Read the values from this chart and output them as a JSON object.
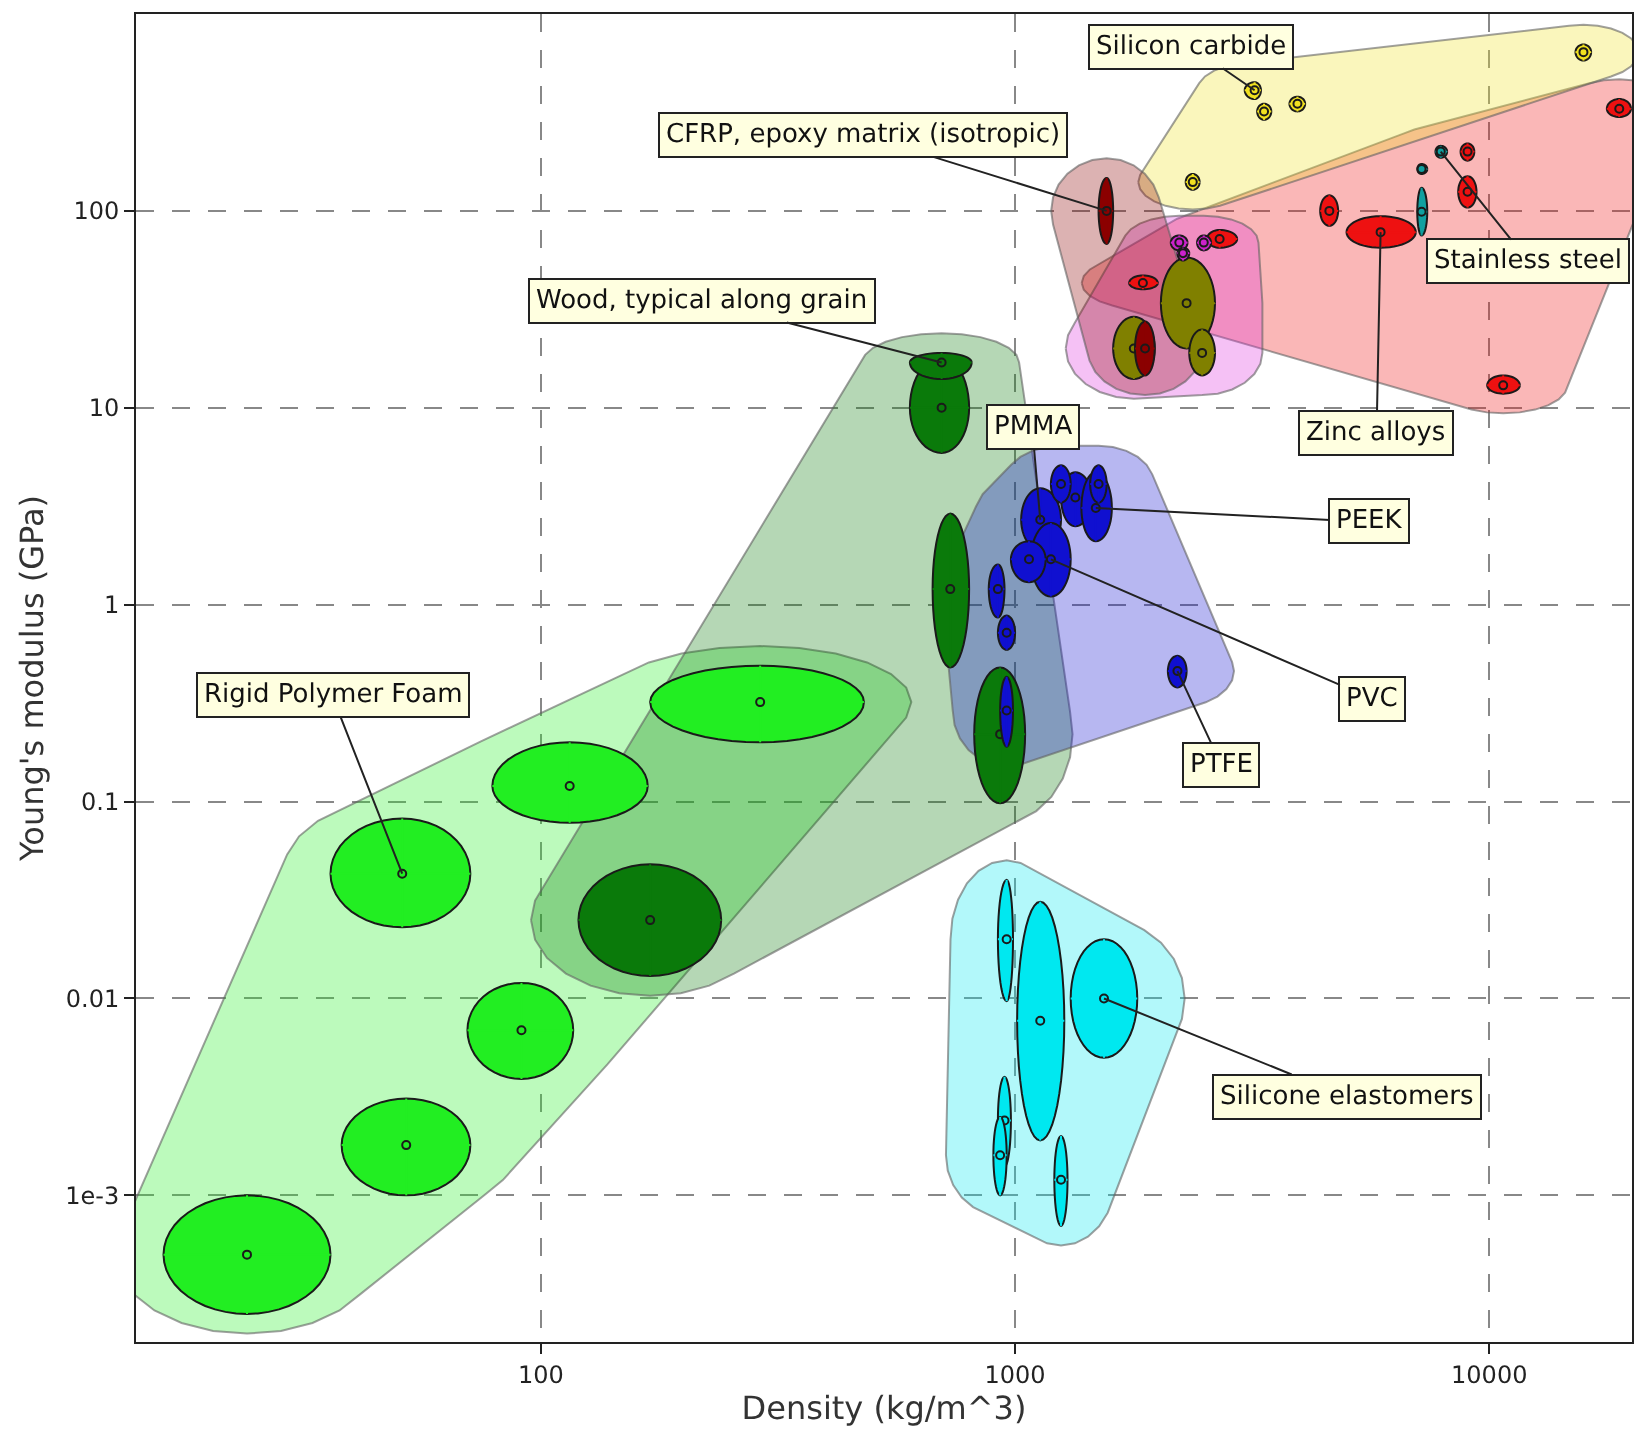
{
  "chart_data": {
    "type": "scatter",
    "log": "xy",
    "xlabel": "Density (kg/m^3)",
    "ylabel": "Young's modulus (GPa)",
    "xlim": [
      14,
      20000
    ],
    "ylim": [
      0.00018,
      1000
    ],
    "xticks": [
      100,
      1000,
      10000
    ],
    "yticks": [
      {
        "value": 0.001,
        "label": "1e-3"
      },
      {
        "value": 0.01,
        "label": "0.01"
      },
      {
        "value": 0.1,
        "label": "0.1"
      },
      {
        "value": 1,
        "label": "1"
      },
      {
        "value": 10,
        "label": "10"
      },
      {
        "value": 100,
        "label": "100"
      }
    ],
    "grid": true,
    "series": [
      {
        "color": "#22ee22",
        "x": [
          24,
          52,
          91,
          51,
          115,
          290
        ],
        "values": [
          0.0005,
          0.0018,
          0.0069,
          0.043,
          0.12,
          0.32
        ],
        "xerrors": [
          [
            16,
            36
          ],
          [
            38,
            71
          ],
          [
            70,
            117
          ],
          [
            36,
            71
          ],
          [
            79,
            168
          ],
          [
            170,
            480
          ]
        ],
        "errors": [
          [
            0.00025,
            0.001
          ],
          [
            0.001,
            0.0031
          ],
          [
            0.0039,
            0.012
          ],
          [
            0.023,
            0.082
          ],
          [
            0.078,
            0.2
          ],
          [
            0.2,
            0.49
          ]
        ]
      },
      {
        "color": "#0a7a0a",
        "x": [
          170,
          700,
          700,
          730,
          930
        ],
        "values": [
          0.025,
          10,
          17,
          1.2,
          0.22
        ],
        "xerrors": [
          [
            120,
            240
          ],
          [
            600,
            800
          ],
          [
            600,
            810
          ],
          [
            670,
            800
          ],
          [
            820,
            1050
          ]
        ],
        "errors": [
          [
            0.013,
            0.048
          ],
          [
            5.9,
            18
          ],
          [
            14,
            19
          ],
          [
            0.48,
            2.9
          ],
          [
            0.098,
            0.48
          ]
        ]
      },
      {
        "color": "#1010d0",
        "x": [
          920,
          960,
          960,
          2200,
          1130,
          1190,
          1070,
          1340,
          1480,
          1250,
          1500
        ],
        "values": [
          1.2,
          0.72,
          0.29,
          0.46,
          2.7,
          1.7,
          1.7,
          3.5,
          3.1,
          4.1,
          4.1
        ],
        "xerrors": [
          [
            880,
            950
          ],
          [
            920,
            1000
          ],
          [
            930,
            990
          ],
          [
            2100,
            2300
          ],
          [
            1030,
            1250
          ],
          [
            1080,
            1310
          ],
          [
            980,
            1160
          ],
          [
            1250,
            1450
          ],
          [
            1380,
            1600
          ],
          [
            1190,
            1310
          ],
          [
            1440,
            1560
          ]
        ],
        "errors": [
          [
            0.86,
            1.6
          ],
          [
            0.59,
            0.88
          ],
          [
            0.19,
            0.43
          ],
          [
            0.38,
            0.55
          ],
          [
            1.9,
            3.9
          ],
          [
            1.1,
            2.6
          ],
          [
            1.3,
            2.1
          ],
          [
            2.5,
            4.7
          ],
          [
            2.1,
            4.7
          ],
          [
            3.3,
            5.1
          ],
          [
            3.3,
            5.1
          ]
        ]
      },
      {
        "color": "#00e8f0",
        "x": [
          960,
          1130,
          1540,
          950,
          930,
          1250
        ],
        "values": [
          0.02,
          0.0077,
          0.01,
          0.0024,
          0.0016,
          0.0012
        ],
        "xerrors": [
          [
            920,
            990
          ],
          [
            1010,
            1270
          ],
          [
            1310,
            1810
          ],
          [
            920,
            980
          ],
          [
            900,
            960
          ],
          [
            1210,
            1290
          ]
        ],
        "errors": [
          [
            0.0097,
            0.04
          ],
          [
            0.0019,
            0.031
          ],
          [
            0.005,
            0.02
          ],
          [
            0.0014,
            0.004
          ],
          [
            0.001,
            0.0025
          ],
          [
            0.0007,
            0.002
          ]
        ]
      },
      {
        "color": "#ee1111",
        "colors": [
          "#ee1111",
          "#ee1111",
          "#ee1111",
          "#ee1111",
          "#ee1111",
          "#ee1111",
          "#ee1111",
          "#ee1111",
          "#10a0a0",
          "#10a0a0",
          "#10a0a0"
        ],
        "x": [
          4600,
          5900,
          9000,
          9000,
          18800,
          10700,
          2700,
          1860,
          7900,
          7200,
          7200
        ],
        "values": [
          100,
          78,
          200,
          125,
          330,
          13,
          72,
          43,
          200,
          163,
          99
        ],
        "xerrors": [
          [
            4400,
            4800
          ],
          [
            5000,
            7000
          ],
          [
            8700,
            9300
          ],
          [
            8600,
            9400
          ],
          [
            17700,
            19900
          ],
          [
            9900,
            11600
          ],
          [
            2540,
            2940
          ],
          [
            1740,
            2000
          ],
          [
            7700,
            8150
          ],
          [
            7050,
            7400
          ],
          [
            7050,
            7400
          ]
        ],
        "errors": [
          [
            84,
            120
          ],
          [
            65,
            94
          ],
          [
            180,
            220
          ],
          [
            104,
            150
          ],
          [
            300,
            370
          ],
          [
            11.8,
            14.6
          ],
          [
            65,
            80
          ],
          [
            40,
            47
          ],
          [
            186,
            214
          ],
          [
            154,
            173
          ],
          [
            75,
            131
          ]
        ]
      },
      {
        "color": "#f0e020",
        "x": [
          3200,
          3350,
          3940,
          2370,
          15800
        ],
        "values": [
          410,
          320,
          350,
          140,
          640
        ],
        "xerrors": [
          [
            3050,
            3300
          ],
          [
            3240,
            3470
          ],
          [
            3790,
            4090
          ],
          [
            2290,
            2450
          ],
          [
            15200,
            16400
          ]
        ],
        "errors": [
          [
            370,
            450
          ],
          [
            290,
            350
          ],
          [
            320,
            380
          ],
          [
            128,
            154
          ],
          [
            580,
            700
          ]
        ]
      },
      {
        "color": "#dd33dd",
        "colors": [
          "#808000",
          "#808000",
          "#808000",
          "#cc22cc",
          "#cc22cc",
          "#cc22cc"
        ],
        "x": [
          2300,
          1780,
          2480,
          2220,
          2500,
          2260
        ],
        "values": [
          34,
          20,
          19,
          69,
          69,
          61
        ],
        "xerrors": [
          [
            2030,
            2640
          ],
          [
            1610,
            1970
          ],
          [
            2330,
            2640
          ],
          [
            2130,
            2310
          ],
          [
            2420,
            2590
          ],
          [
            2200,
            2330
          ]
        ],
        "errors": [
          [
            20,
            58
          ],
          [
            14,
            29
          ],
          [
            14.6,
            25
          ],
          [
            63,
            75
          ],
          [
            63,
            75
          ],
          [
            56,
            65
          ]
        ]
      },
      {
        "color": "#8b0000",
        "x": [
          1560,
          1880
        ],
        "values": [
          100,
          20
        ],
        "xerrors": [
          [
            1500,
            1610
          ],
          [
            1790,
            1970
          ]
        ],
        "errors": [
          [
            68,
            147
          ],
          [
            14.6,
            27.4
          ]
        ]
      }
    ],
    "annotations": [
      {
        "text": "Silicon carbide",
        "x": 3200,
        "y": 410
      },
      {
        "text": "CFRP, epoxy matrix (isotropic)",
        "x": 1560,
        "y": 100
      },
      {
        "text": "Stainless steel",
        "x": 7900,
        "y": 200
      },
      {
        "text": "Wood, typical along grain",
        "x": 700,
        "y": 17
      },
      {
        "text": "Zinc alloys",
        "x": 5900,
        "y": 78
      },
      {
        "text": "PMMA",
        "x": 1130,
        "y": 2.7
      },
      {
        "text": "PEEK",
        "x": 1480,
        "y": 3.1
      },
      {
        "text": "PVC",
        "x": 1190,
        "y": 1.7
      },
      {
        "text": "PTFE",
        "x": 2200,
        "y": 0.46
      },
      {
        "text": "Silicone elastomers",
        "x": 1540,
        "y": 0.01
      },
      {
        "text": "Rigid Polymer Foam",
        "x": 51,
        "y": 0.043
      }
    ]
  }
}
